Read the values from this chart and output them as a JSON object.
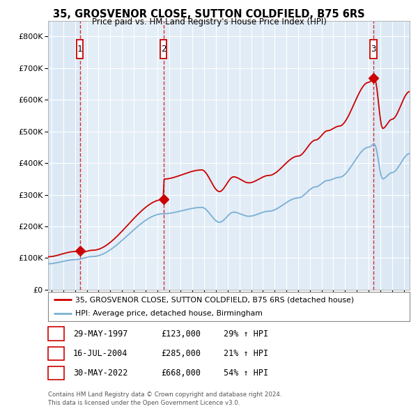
{
  "title1": "35, GROSVENOR CLOSE, SUTTON COLDFIELD, B75 6RS",
  "title2": "Price paid vs. HM Land Registry's House Price Index (HPI)",
  "legend_line1": "35, GROSVENOR CLOSE, SUTTON COLDFIELD, B75 6RS (detached house)",
  "legend_line2": "HPI: Average price, detached house, Birmingham",
  "sale_color": "#cc0000",
  "hpi_color": "#7bafd4",
  "bg_color": "#dce9f5",
  "bg_owned_color": "#e8f0f8",
  "grid_color": "#ffffff",
  "sale_dates": [
    1997.41,
    2004.54,
    2022.41
  ],
  "sale_prices": [
    123000,
    285000,
    668000
  ],
  "sale_labels": [
    "1",
    "2",
    "3"
  ],
  "table_rows": [
    {
      "num": "1",
      "date": "29-MAY-1997",
      "price": "£123,000",
      "change": "29% ↑ HPI"
    },
    {
      "num": "2",
      "date": "16-JUL-2004",
      "price": "£285,000",
      "change": "21% ↑ HPI"
    },
    {
      "num": "3",
      "date": "30-MAY-2022",
      "price": "£668,000",
      "change": "54% ↑ HPI"
    }
  ],
  "footer": "Contains HM Land Registry data © Crown copyright and database right 2024.\nThis data is licensed under the Open Government Licence v3.0.",
  "ylim": [
    0,
    850000
  ],
  "xmin": 1994.7,
  "xmax": 2025.5,
  "yticks": [
    0,
    100000,
    200000,
    300000,
    400000,
    500000,
    600000,
    700000,
    800000
  ]
}
